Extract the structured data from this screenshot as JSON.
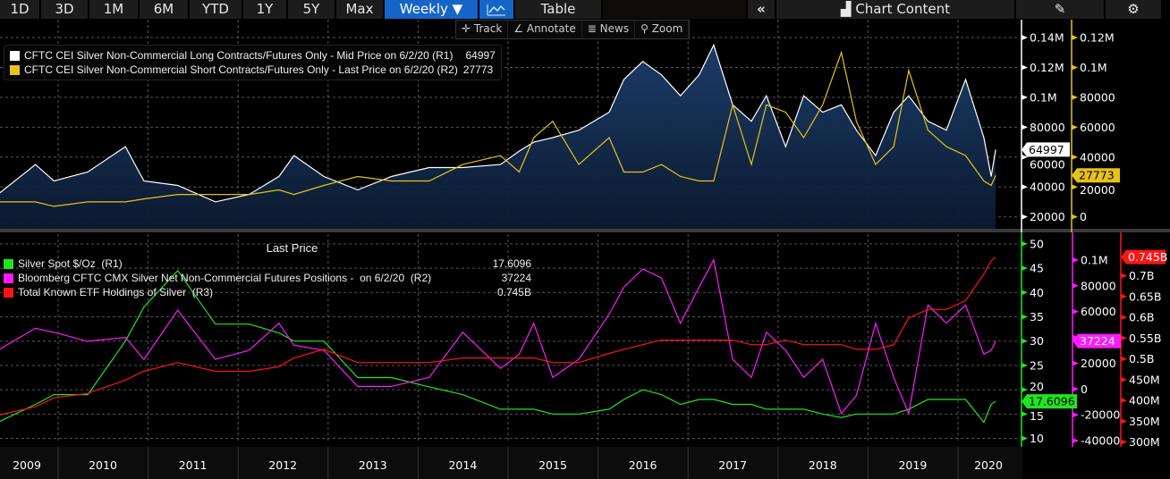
{
  "toolbar": {
    "ranges": [
      "1D",
      "3D",
      "1M",
      "6M",
      "YTD",
      "1Y",
      "5Y",
      "Max"
    ],
    "frequency": "Weekly ▼",
    "chart_icon": "line-chart-icon",
    "table_label": "Table",
    "collapse_icon": "«",
    "chart_content_label": "Chart Content",
    "chart_content_icon": "chart-content-icon",
    "edit_icon": "edit-icon",
    "settings_icon": "gear-icon",
    "tools": [
      {
        "icon": "✛",
        "label": "Track"
      },
      {
        "icon": "∠",
        "label": "Annotate"
      },
      {
        "icon": "≣",
        "label": "News"
      },
      {
        "icon": "⚲",
        "label": "Zoom"
      }
    ]
  },
  "chart_data": [
    {
      "type": "area",
      "x_axis": [
        "2009",
        "2010",
        "2011",
        "2012",
        "2013",
        "2014",
        "2015",
        "2016",
        "2017",
        "2018",
        "2019",
        "2020"
      ],
      "grid": true,
      "legend_placement": "top-left",
      "dates": [
        "2009-05-01",
        "2009-10-01",
        "2009-12-15",
        "2010-05-01",
        "2010-10-01",
        "2010-12-15",
        "2011-05-01",
        "2011-10-01",
        "2012-02-15",
        "2012-06-15",
        "2012-08-15",
        "2012-12-15",
        "2013-05-01",
        "2013-09-15",
        "2014-02-15",
        "2014-07-01",
        "2014-12-01",
        "2015-02-15",
        "2015-04-15",
        "2015-07-01",
        "2015-10-15",
        "2016-02-15",
        "2016-04-15",
        "2016-07-01",
        "2016-09-15",
        "2016-12-01",
        "2017-02-15",
        "2017-04-15",
        "2017-07-01",
        "2017-09-15",
        "2017-11-15",
        "2018-02-01",
        "2018-04-15",
        "2018-07-01",
        "2018-09-15",
        "2018-11-15",
        "2019-02-01",
        "2019-04-15",
        "2019-06-15",
        "2019-09-01",
        "2019-11-15",
        "2020-02-01",
        "2020-04-15",
        "2020-05-15",
        "2020-06-02"
      ],
      "series": [
        {
          "name": "CFTC CEI Silver Non-Commercial Long Contracts/Futures Only - Mid Price on 6/2/20 (R1)",
          "last": "64997",
          "color": "#ffffff",
          "axis": "R1",
          "values": [
            35000,
            55000,
            44000,
            50000,
            67000,
            44000,
            41000,
            30000,
            35000,
            47000,
            61000,
            47000,
            38000,
            47000,
            53000,
            53000,
            55000,
            64000,
            70000,
            73000,
            78000,
            90000,
            112000,
            124000,
            115000,
            101000,
            115000,
            135000,
            95000,
            84000,
            101000,
            67000,
            101000,
            90000,
            95000,
            78000,
            61000,
            90000,
            101000,
            84000,
            78000,
            112000,
            73000,
            47000,
            64997
          ]
        },
        {
          "name": "CFTC CEI Silver Non-Commercial Short Contracts/Futures Only - Last Price on 6/2/20 (R2)",
          "last": "27773",
          "color": "#e6c21a",
          "axis": "R2",
          "values": [
            10000,
            10000,
            7000,
            10000,
            10000,
            12000,
            15000,
            15000,
            15000,
            18000,
            15000,
            21000,
            27000,
            24000,
            24000,
            35000,
            41000,
            30000,
            53000,
            64000,
            35000,
            53000,
            30000,
            30000,
            35000,
            27000,
            24000,
            24000,
            75000,
            35000,
            75000,
            70000,
            53000,
            75000,
            110000,
            64000,
            35000,
            47000,
            98000,
            58000,
            47000,
            41000,
            24000,
            21000,
            27773
          ]
        }
      ],
      "axes": {
        "R1": {
          "ticks": [
            20000,
            40000,
            60000,
            80000,
            100000,
            120000,
            140000
          ],
          "labels": [
            "20000",
            "40000",
            "60000",
            "80000",
            "0.1M",
            "0.12M",
            "0.14M"
          ],
          "range": [
            12000,
            152000
          ],
          "color": "#ffffff"
        },
        "R2": {
          "ticks": [
            0,
            20000,
            40000,
            60000,
            80000,
            100000,
            120000
          ],
          "labels": [
            "0",
            "20000",
            "40000",
            "60000",
            "80000",
            "0.1M",
            "0.12M"
          ],
          "range": [
            -8000,
            132000
          ],
          "color": "#e6c21a"
        }
      }
    },
    {
      "type": "line",
      "legend_header": "Last Price",
      "legend_placement": "top-left",
      "grid": true,
      "series": [
        {
          "name": "Silver Spot $/Oz  (R1)",
          "last": "17.6096",
          "color": "#1ee61e",
          "axis": "R1",
          "values": [
            13.3,
            17,
            19,
            19,
            30,
            37,
            44.5,
            33.5,
            33.5,
            31.7,
            30,
            30,
            22.5,
            22.5,
            20.6,
            19,
            16,
            16,
            16,
            15,
            15,
            16,
            18,
            20,
            19,
            17,
            18,
            18,
            17,
            17,
            16,
            16,
            16,
            15,
            14.3,
            15,
            15,
            15,
            16,
            18,
            18,
            18,
            13.3,
            17,
            17.61
          ]
        },
        {
          "name": "Bloomberg CFTC CMX Silver Net Non-Commercial Futures Positions -  on 6/2/20  (R2)",
          "last": "37224",
          "color": "#ff1aff",
          "axis": "R2",
          "values": [
            30000,
            47000,
            44000,
            37000,
            40000,
            23000,
            61000,
            23000,
            30000,
            51000,
            34000,
            30000,
            2000,
            2000,
            9000,
            44000,
            16000,
            27000,
            51000,
            9000,
            23000,
            58000,
            79000,
            93000,
            86000,
            51000,
            79000,
            100000,
            23000,
            9000,
            44000,
            30000,
            9000,
            23000,
            -19000,
            -5000,
            51000,
            9000,
            -19000,
            65000,
            51000,
            65000,
            27000,
            30000,
            37224
          ]
        },
        {
          "name": "Total Known ETF Holdings of Silver  (R3)",
          "last": "0.745B",
          "color": "#ff1414",
          "axis": "R3",
          "values": [
            364,
            385,
            406,
            417,
            449,
            470,
            491,
            470,
            470,
            481,
            502,
            523,
            491,
            491,
            491,
            502,
            502,
            502,
            502,
            491,
            491,
            513,
            523,
            534,
            545,
            545,
            545,
            545,
            545,
            534,
            534,
            545,
            534,
            534,
            534,
            523,
            523,
            534,
            598,
            619,
            619,
            640,
            704,
            736,
            745
          ]
        }
      ],
      "axes": {
        "R1": {
          "ticks": [
            10,
            15,
            20,
            25,
            30,
            35,
            40,
            45,
            50
          ],
          "labels": [
            "10",
            "15",
            "20",
            "25",
            "30",
            "35",
            "40",
            "45",
            "50"
          ],
          "range": [
            9,
            52
          ],
          "color": "#1ee61e"
        },
        "R2": {
          "ticks": [
            -40000,
            -20000,
            0,
            20000,
            40000,
            60000,
            80000,
            100000
          ],
          "labels": [
            "-40000",
            "-20000",
            "0",
            "20000",
            "",
            "60000",
            "80000",
            "0.1M"
          ],
          "range": [
            -42000,
            120000
          ],
          "color": "#ff1aff"
        },
        "R3": {
          "ticks": [
            300,
            350,
            400,
            450,
            500,
            550,
            600,
            650,
            700
          ],
          "labels": [
            "300M",
            "350M",
            "400M",
            "450M",
            "0.5B",
            "0.55B",
            "0.6B",
            "0.65B",
            "0.7B"
          ],
          "range": [
            297,
            800
          ],
          "color": "#ff1414"
        }
      }
    }
  ]
}
